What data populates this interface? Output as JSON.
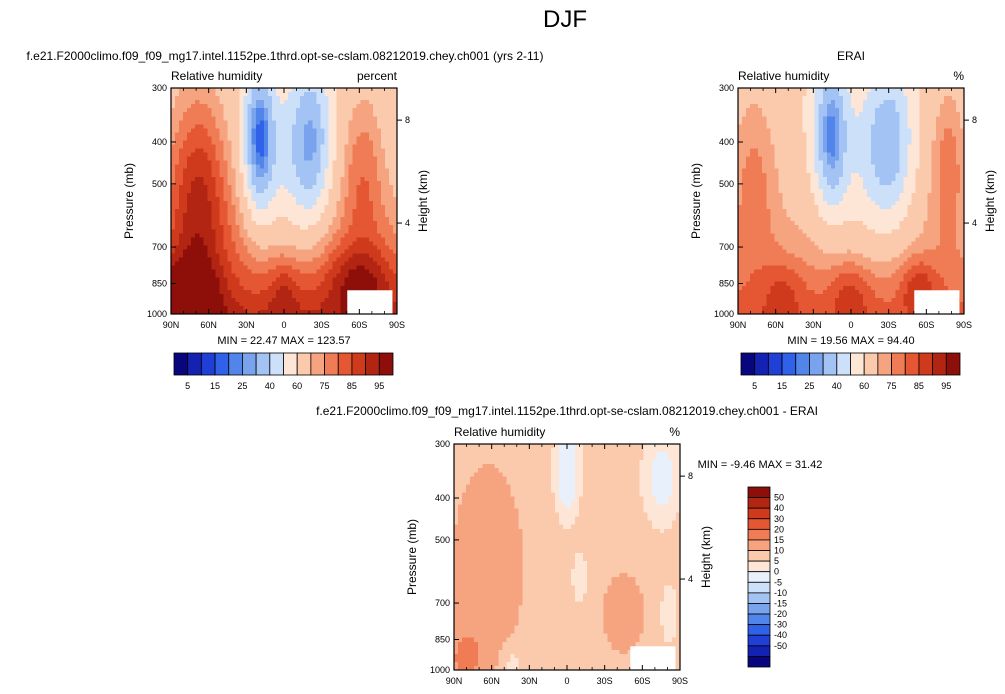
{
  "page": {
    "title": "DJF"
  },
  "colors": {
    "background": "#ffffff",
    "frame": "#000000",
    "mask": "#ffffff"
  },
  "palettes": {
    "abs": [
      "#08067e",
      "#1322b0",
      "#1f3fd6",
      "#2f62e8",
      "#5185ea",
      "#7aa3ee",
      "#a3c3f5",
      "#cde0fa",
      "#fde6d5",
      "#fbc9ac",
      "#f6a47f",
      "#f07c56",
      "#e55632",
      "#cf3a1c",
      "#b22512",
      "#8e0f0a"
    ],
    "diff": [
      "#08067e",
      "#1322b0",
      "#1f3fd6",
      "#2f62e8",
      "#5185ea",
      "#7aa3ee",
      "#a3c3f5",
      "#cde0fa",
      "#e8f0fb",
      "#fde6d5",
      "#fbc9ac",
      "#f6a47f",
      "#f07c56",
      "#e55632",
      "#cf3a1c",
      "#b22512",
      "#8e0f0a"
    ]
  },
  "chart_data": [
    {
      "id": "model",
      "type": "heatmap",
      "title": "f.e21.F2000climo.f09_f09_mg17.intel.1152pe.1thrd.opt-se-cslam.08212019.chey.ch001 (yrs 2-11)",
      "left_label": "Relative humidity",
      "right_label": "percent",
      "ylabel": "Pressure (mb)",
      "ylabel_right": "Height (km)",
      "x_ticks": [
        "90N",
        "60N",
        "30N",
        "0",
        "30S",
        "60S",
        "90S"
      ],
      "y_ticks": [
        "300",
        "400",
        "500",
        "700",
        "850",
        "1000"
      ],
      "y_tick_values": [
        300,
        400,
        500,
        700,
        850,
        1000
      ],
      "y_right_ticks": [
        "8",
        "4"
      ],
      "y_right_tick_values": [
        356,
        616
      ],
      "xlim": [
        90,
        -90
      ],
      "ylim": [
        300,
        1000
      ],
      "y_scale": "log",
      "min": 22.47,
      "max": 123.57,
      "stats_text": "MIN =  22.47   MAX = 123.57",
      "colorbar": {
        "orientation": "horizontal",
        "labels": [
          "5",
          "15",
          "25",
          "40",
          "60",
          "75",
          "85",
          "95"
        ],
        "palette": "abs"
      },
      "field": "model"
    },
    {
      "id": "obs",
      "type": "heatmap",
      "title": "ERAI",
      "left_label": "Relative humidity",
      "right_label": "%",
      "ylabel": "Pressure (mb)",
      "ylabel_right": "Height (km)",
      "x_ticks": [
        "90N",
        "60N",
        "30N",
        "0",
        "30S",
        "60S",
        "90S"
      ],
      "y_ticks": [
        "300",
        "400",
        "500",
        "700",
        "850",
        "1000"
      ],
      "y_tick_values": [
        300,
        400,
        500,
        700,
        850,
        1000
      ],
      "y_right_ticks": [
        "8",
        "4"
      ],
      "y_right_tick_values": [
        356,
        616
      ],
      "xlim": [
        90,
        -90
      ],
      "ylim": [
        300,
        1000
      ],
      "y_scale": "log",
      "min": 19.56,
      "max": 94.4,
      "stats_text": "MIN =  19.56   MAX = 94.40",
      "colorbar": {
        "orientation": "horizontal",
        "labels": [
          "5",
          "15",
          "25",
          "40",
          "60",
          "75",
          "85",
          "95"
        ],
        "palette": "abs"
      },
      "field": "obs"
    },
    {
      "id": "diff",
      "type": "heatmap",
      "title": "f.e21.F2000climo.f09_f09_mg17.intel.1152pe.1thrd.opt-se-cslam.08212019.chey.ch001 - ERAI",
      "left_label": "Relative humidity",
      "right_label": "%",
      "ylabel": "Pressure (mb)",
      "ylabel_right": "Height (km)",
      "x_ticks": [
        "90N",
        "60N",
        "30N",
        "0",
        "30S",
        "60S",
        "90S"
      ],
      "y_ticks": [
        "300",
        "400",
        "500",
        "700",
        "850",
        "1000"
      ],
      "y_tick_values": [
        300,
        400,
        500,
        700,
        850,
        1000
      ],
      "y_right_ticks": [
        "8",
        "4"
      ],
      "y_right_tick_values": [
        356,
        616
      ],
      "xlim": [
        90,
        -90
      ],
      "ylim": [
        300,
        1000
      ],
      "y_scale": "log",
      "min": -9.46,
      "max": 31.42,
      "stats_text": "MIN = -9.46   MAX = 31.42",
      "colorbar": {
        "orientation": "vertical",
        "labels": [
          "50",
          "40",
          "30",
          "20",
          "15",
          "10",
          "5",
          "0",
          "-5",
          "-10",
          "-15",
          "-20",
          "-30",
          "-40",
          "-50"
        ],
        "palette": "diff"
      },
      "field": "diff"
    }
  ]
}
